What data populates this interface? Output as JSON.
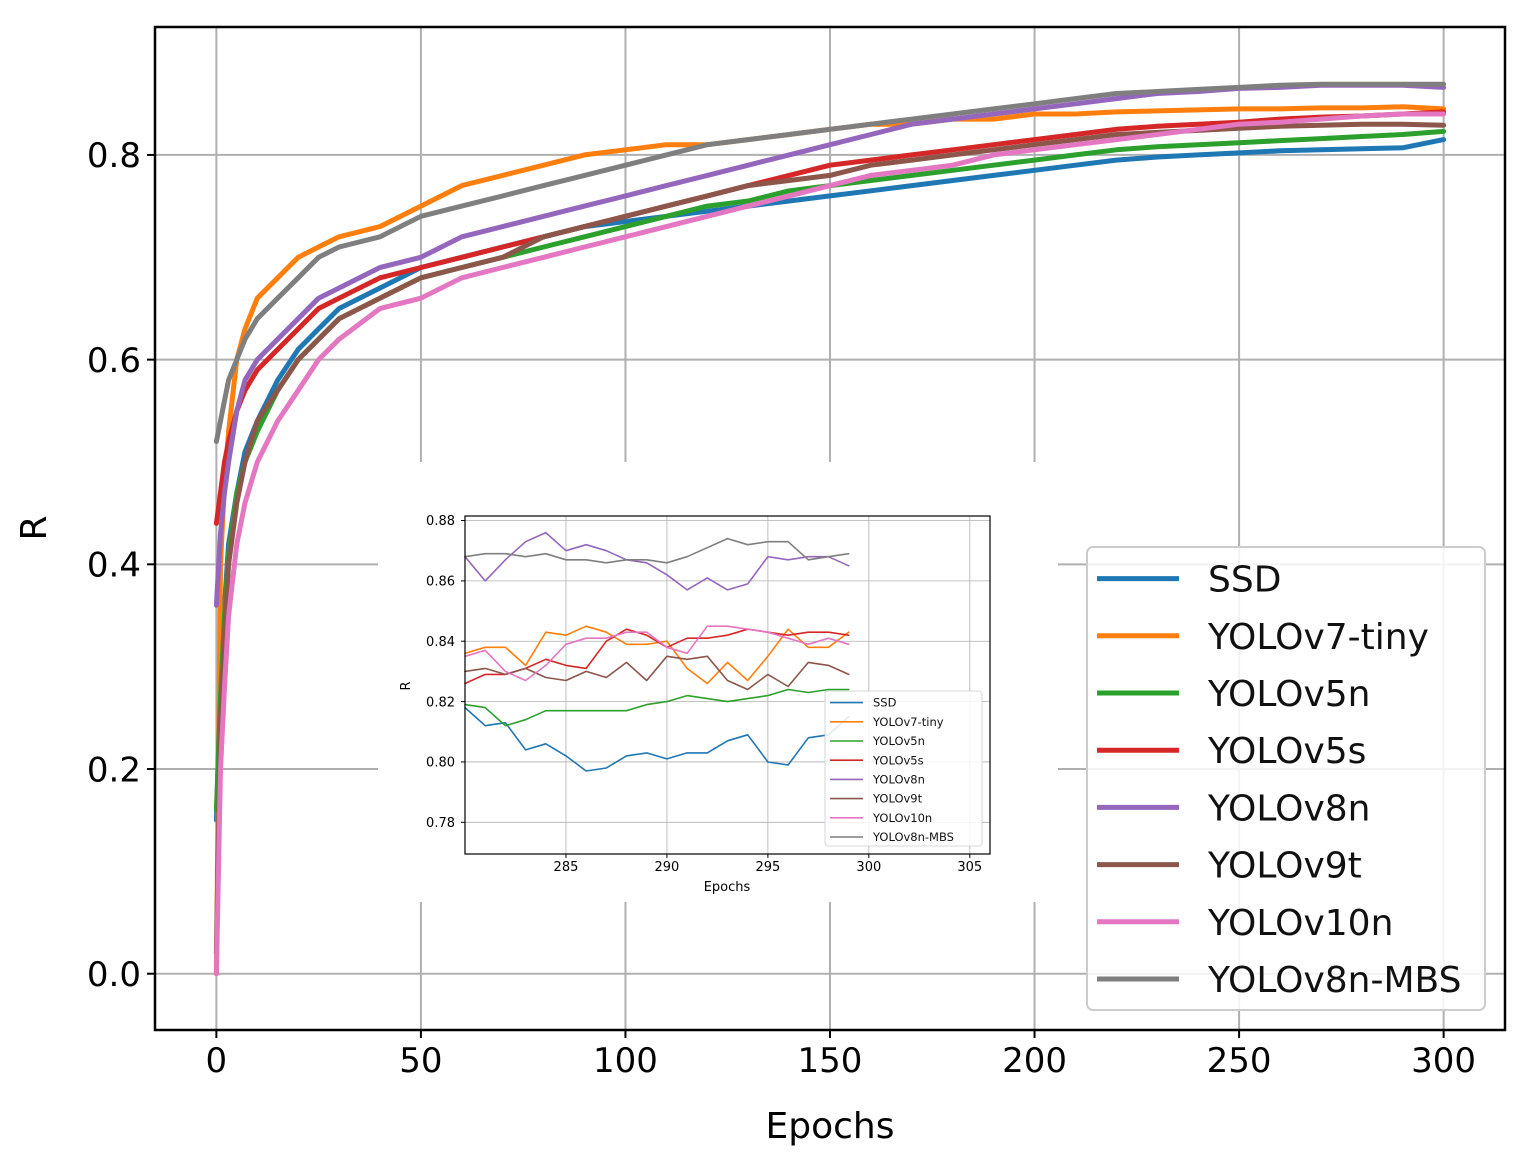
{
  "chart_data": [
    {
      "id": "main",
      "type": "line",
      "title": "",
      "xlabel": "Epochs",
      "ylabel": "R",
      "xlim": [
        -15,
        315
      ],
      "ylim": [
        -0.055,
        0.925
      ],
      "xticks": [
        0,
        50,
        100,
        150,
        200,
        250,
        300
      ],
      "xtick_labels": [
        "0",
        "50",
        "100",
        "150",
        "200",
        "250",
        "300"
      ],
      "yticks": [
        0.0,
        0.2,
        0.4,
        0.6,
        0.8
      ],
      "ytick_labels": [
        "0.0",
        "0.2",
        "0.4",
        "0.6",
        "0.8"
      ],
      "grid": true,
      "legend_position": "lower-right",
      "x": [
        0,
        1,
        2,
        3,
        5,
        7,
        10,
        15,
        20,
        25,
        30,
        40,
        50,
        60,
        70,
        80,
        90,
        100,
        110,
        120,
        130,
        140,
        150,
        160,
        170,
        180,
        190,
        200,
        210,
        220,
        230,
        240,
        250,
        260,
        270,
        280,
        290,
        300
      ],
      "series": [
        {
          "name": "SSD",
          "color": "#1f77b4",
          "values": [
            0.15,
            0.28,
            0.36,
            0.42,
            0.47,
            0.51,
            0.54,
            0.58,
            0.61,
            0.63,
            0.65,
            0.67,
            0.69,
            0.7,
            0.71,
            0.72,
            0.73,
            0.735,
            0.74,
            0.745,
            0.75,
            0.755,
            0.76,
            0.765,
            0.77,
            0.775,
            0.78,
            0.785,
            0.79,
            0.795,
            0.798,
            0.8,
            0.802,
            0.804,
            0.805,
            0.806,
            0.807,
            0.815
          ]
        },
        {
          "name": "YOLOv7-tiny",
          "color": "#ff7f0e",
          "values": [
            0.0,
            0.4,
            0.48,
            0.53,
            0.6,
            0.63,
            0.66,
            0.68,
            0.7,
            0.71,
            0.72,
            0.73,
            0.75,
            0.77,
            0.78,
            0.79,
            0.8,
            0.805,
            0.81,
            0.81,
            0.815,
            0.82,
            0.825,
            0.83,
            0.83,
            0.835,
            0.835,
            0.84,
            0.84,
            0.842,
            0.843,
            0.844,
            0.845,
            0.845,
            0.846,
            0.846,
            0.847,
            0.845
          ]
        },
        {
          "name": "YOLOv5n",
          "color": "#2ca02c",
          "values": [
            0.16,
            0.27,
            0.35,
            0.41,
            0.47,
            0.5,
            0.53,
            0.57,
            0.6,
            0.62,
            0.64,
            0.66,
            0.68,
            0.69,
            0.7,
            0.71,
            0.72,
            0.73,
            0.74,
            0.75,
            0.755,
            0.765,
            0.77,
            0.775,
            0.78,
            0.785,
            0.79,
            0.795,
            0.8,
            0.805,
            0.808,
            0.81,
            0.812,
            0.814,
            0.816,
            0.818,
            0.82,
            0.823
          ]
        },
        {
          "name": "YOLOv5s",
          "color": "#d62728",
          "values": [
            0.44,
            0.47,
            0.5,
            0.52,
            0.55,
            0.57,
            0.59,
            0.61,
            0.63,
            0.65,
            0.66,
            0.68,
            0.69,
            0.7,
            0.71,
            0.72,
            0.73,
            0.74,
            0.75,
            0.76,
            0.77,
            0.78,
            0.79,
            0.795,
            0.8,
            0.805,
            0.81,
            0.815,
            0.82,
            0.825,
            0.828,
            0.83,
            0.832,
            0.835,
            0.837,
            0.838,
            0.84,
            0.842
          ]
        },
        {
          "name": "YOLOv8n",
          "color": "#9467bd",
          "values": [
            0.36,
            0.43,
            0.47,
            0.5,
            0.55,
            0.58,
            0.6,
            0.62,
            0.64,
            0.66,
            0.67,
            0.69,
            0.7,
            0.72,
            0.73,
            0.74,
            0.75,
            0.76,
            0.77,
            0.78,
            0.79,
            0.8,
            0.81,
            0.82,
            0.83,
            0.835,
            0.84,
            0.845,
            0.85,
            0.855,
            0.86,
            0.862,
            0.865,
            0.866,
            0.868,
            0.868,
            0.868,
            0.866
          ]
        },
        {
          "name": "YOLOv9t",
          "color": "#8c564b",
          "values": [
            0.02,
            0.25,
            0.33,
            0.4,
            0.46,
            0.5,
            0.54,
            0.57,
            0.6,
            0.62,
            0.64,
            0.66,
            0.68,
            0.69,
            0.7,
            0.72,
            0.73,
            0.74,
            0.75,
            0.76,
            0.77,
            0.775,
            0.78,
            0.79,
            0.795,
            0.8,
            0.805,
            0.81,
            0.815,
            0.82,
            0.822,
            0.824,
            0.826,
            0.828,
            0.829,
            0.83,
            0.83,
            0.829
          ]
        },
        {
          "name": "YOLOv10n",
          "color": "#e377c2",
          "values": [
            0.0,
            0.2,
            0.28,
            0.35,
            0.42,
            0.46,
            0.5,
            0.54,
            0.57,
            0.6,
            0.62,
            0.65,
            0.66,
            0.68,
            0.69,
            0.7,
            0.71,
            0.72,
            0.73,
            0.74,
            0.75,
            0.76,
            0.77,
            0.78,
            0.785,
            0.79,
            0.8,
            0.805,
            0.81,
            0.815,
            0.82,
            0.825,
            0.83,
            0.832,
            0.835,
            0.838,
            0.84,
            0.84
          ]
        },
        {
          "name": "YOLOv8n-MBS",
          "color": "#7f7f7f",
          "values": [
            0.52,
            0.54,
            0.56,
            0.58,
            0.6,
            0.62,
            0.64,
            0.66,
            0.68,
            0.7,
            0.71,
            0.72,
            0.74,
            0.75,
            0.76,
            0.77,
            0.78,
            0.79,
            0.8,
            0.81,
            0.815,
            0.82,
            0.825,
            0.83,
            0.835,
            0.84,
            0.845,
            0.85,
            0.855,
            0.86,
            0.862,
            0.864,
            0.866,
            0.868,
            0.869,
            0.869,
            0.869,
            0.869
          ]
        }
      ]
    },
    {
      "id": "inset",
      "type": "line",
      "title": "",
      "xlabel": "Epochs",
      "ylabel": "R",
      "xlim": [
        280,
        306
      ],
      "ylim": [
        0.7695,
        0.8815
      ],
      "xticks": [
        285,
        290,
        295,
        300,
        305
      ],
      "xtick_labels": [
        "285",
        "290",
        "295",
        "300",
        "305"
      ],
      "yticks": [
        0.78,
        0.8,
        0.82,
        0.84,
        0.86,
        0.88
      ],
      "ytick_labels": [
        "0.78",
        "0.80",
        "0.82",
        "0.84",
        "0.86",
        "0.88"
      ],
      "grid": true,
      "legend_position": "right",
      "x": [
        280,
        281,
        282,
        283,
        284,
        285,
        286,
        287,
        288,
        289,
        290,
        291,
        292,
        293,
        294,
        295,
        296,
        297,
        298,
        299
      ],
      "series": [
        {
          "name": "SSD",
          "color": "#1f77b4",
          "values": [
            0.818,
            0.812,
            0.813,
            0.804,
            0.806,
            0.802,
            0.797,
            0.798,
            0.802,
            0.803,
            0.801,
            0.803,
            0.803,
            0.807,
            0.809,
            0.8,
            0.799,
            0.808,
            0.809,
            0.815
          ]
        },
        {
          "name": "YOLOv7-tiny",
          "color": "#ff7f0e",
          "values": [
            0.836,
            0.838,
            0.838,
            0.832,
            0.843,
            0.842,
            0.845,
            0.843,
            0.839,
            0.839,
            0.84,
            0.831,
            0.826,
            0.833,
            0.827,
            0.835,
            0.844,
            0.838,
            0.838,
            0.843
          ]
        },
        {
          "name": "YOLOv5n",
          "color": "#2ca02c",
          "values": [
            0.819,
            0.818,
            0.812,
            0.814,
            0.817,
            0.817,
            0.817,
            0.817,
            0.817,
            0.819,
            0.82,
            0.822,
            0.821,
            0.82,
            0.821,
            0.822,
            0.824,
            0.823,
            0.824,
            0.824
          ]
        },
        {
          "name": "YOLOv5s",
          "color": "#d62728",
          "values": [
            0.826,
            0.829,
            0.829,
            0.831,
            0.834,
            0.832,
            0.831,
            0.84,
            0.844,
            0.842,
            0.838,
            0.841,
            0.841,
            0.842,
            0.844,
            0.843,
            0.842,
            0.843,
            0.843,
            0.842
          ]
        },
        {
          "name": "YOLOv8n",
          "color": "#9467bd",
          "values": [
            0.868,
            0.86,
            0.867,
            0.873,
            0.876,
            0.87,
            0.872,
            0.87,
            0.867,
            0.866,
            0.862,
            0.857,
            0.861,
            0.857,
            0.859,
            0.868,
            0.867,
            0.868,
            0.868,
            0.865
          ]
        },
        {
          "name": "YOLOv9t",
          "color": "#8c564b",
          "values": [
            0.83,
            0.831,
            0.829,
            0.831,
            0.828,
            0.827,
            0.83,
            0.828,
            0.833,
            0.827,
            0.835,
            0.834,
            0.835,
            0.827,
            0.824,
            0.829,
            0.825,
            0.833,
            0.832,
            0.829
          ]
        },
        {
          "name": "YOLOv10n",
          "color": "#e377c2",
          "values": [
            0.835,
            0.837,
            0.83,
            0.827,
            0.832,
            0.839,
            0.841,
            0.841,
            0.843,
            0.843,
            0.838,
            0.836,
            0.845,
            0.845,
            0.844,
            0.843,
            0.841,
            0.839,
            0.841,
            0.839
          ]
        },
        {
          "name": "YOLOv8n-MBS",
          "color": "#7f7f7f",
          "values": [
            0.868,
            0.869,
            0.869,
            0.868,
            0.869,
            0.867,
            0.867,
            0.866,
            0.867,
            0.867,
            0.866,
            0.868,
            0.871,
            0.874,
            0.872,
            0.873,
            0.873,
            0.867,
            0.868,
            0.869
          ]
        }
      ]
    }
  ]
}
